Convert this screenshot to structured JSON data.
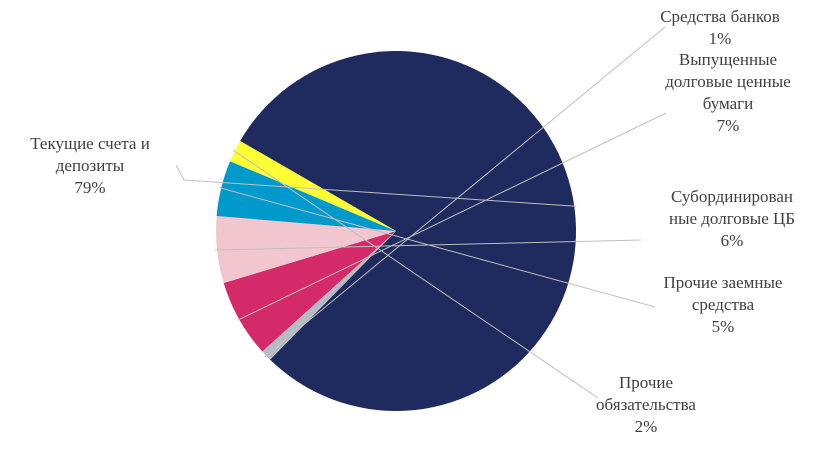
{
  "chart_data": {
    "type": "pie",
    "title": "",
    "categories": [
      "Текущие счета и депозиты",
      "Средства банков",
      "Выпущенные долговые ценные бумаги",
      "Субординированные долговые ЦБ",
      "Прочие заемные средства",
      "Прочие обязательства"
    ],
    "values": [
      79,
      1,
      7,
      6,
      5,
      2
    ],
    "value_labels": [
      "79%",
      "1%",
      "7%",
      "6%",
      "5%",
      "2%"
    ],
    "label_lines": [
      [
        "Текущие счета и",
        "депозиты"
      ],
      [
        "Средства банков"
      ],
      [
        "Выпущенные",
        "долговые ценные",
        "бумаги"
      ],
      [
        "Субординирован",
        "ные долговые ЦБ"
      ],
      [
        "Прочие заемные",
        "средства"
      ],
      [
        "Прочие",
        "обязательства"
      ]
    ],
    "colors": [
      "#1f2a5e",
      "#b4bcc4",
      "#d42a69",
      "#f2c6cf",
      "#0099cc",
      "#ffff33"
    ],
    "legend": "none"
  }
}
